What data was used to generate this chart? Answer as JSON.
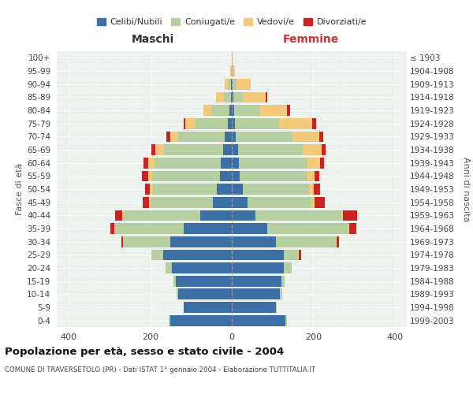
{
  "age_groups": [
    "0-4",
    "5-9",
    "10-14",
    "15-19",
    "20-24",
    "25-29",
    "30-34",
    "35-39",
    "40-44",
    "45-49",
    "50-54",
    "55-59",
    "60-64",
    "65-69",
    "70-74",
    "75-79",
    "80-84",
    "85-89",
    "90-94",
    "95-99",
    "100+"
  ],
  "birth_years": [
    "1999-2003",
    "1994-1998",
    "1989-1993",
    "1984-1988",
    "1979-1983",
    "1974-1978",
    "1969-1973",
    "1964-1968",
    "1959-1963",
    "1954-1958",
    "1949-1953",
    "1944-1948",
    "1939-1943",
    "1934-1938",
    "1929-1933",
    "1924-1928",
    "1919-1923",
    "1914-1918",
    "1909-1913",
    "1904-1908",
    "≤ 1903"
  ],
  "colors": {
    "celibi": "#3c6fa5",
    "coniugati": "#b5cfa0",
    "vedovi": "#f5c97a",
    "divorziati": "#cc2222"
  },
  "maschi": {
    "celibi": [
      152,
      118,
      132,
      138,
      148,
      168,
      152,
      118,
      78,
      46,
      36,
      30,
      28,
      22,
      17,
      9,
      5,
      2,
      1,
      0,
      0
    ],
    "coniugati": [
      2,
      1,
      3,
      5,
      15,
      30,
      115,
      168,
      188,
      152,
      158,
      165,
      162,
      145,
      115,
      80,
      45,
      18,
      8,
      2,
      0
    ],
    "vedovi": [
      0,
      0,
      0,
      0,
      0,
      0,
      0,
      2,
      3,
      5,
      8,
      10,
      15,
      20,
      20,
      25,
      20,
      18,
      8,
      2,
      0
    ],
    "divorziati": [
      0,
      0,
      0,
      0,
      0,
      0,
      5,
      10,
      18,
      15,
      12,
      15,
      12,
      10,
      8,
      5,
      0,
      0,
      0,
      0,
      0
    ]
  },
  "femmine": {
    "celibi": [
      132,
      108,
      118,
      122,
      128,
      128,
      108,
      88,
      58,
      38,
      28,
      20,
      18,
      15,
      10,
      7,
      5,
      3,
      1,
      0,
      0
    ],
    "coniugati": [
      3,
      2,
      5,
      8,
      20,
      35,
      148,
      198,
      212,
      158,
      162,
      165,
      168,
      160,
      140,
      110,
      65,
      25,
      10,
      2,
      0
    ],
    "vedovi": [
      0,
      0,
      0,
      0,
      0,
      2,
      2,
      2,
      3,
      8,
      12,
      18,
      30,
      45,
      65,
      80,
      65,
      55,
      35,
      5,
      2
    ],
    "divorziati": [
      0,
      0,
      0,
      0,
      0,
      5,
      5,
      18,
      35,
      25,
      15,
      12,
      10,
      10,
      10,
      10,
      8,
      5,
      0,
      1,
      0
    ]
  },
  "title": "Popolazione per età, sesso e stato civile - 2004",
  "subtitle": "COMUNE DI TRAVERSETOLO (PR) - Dati ISTAT 1° gennaio 2004 - Elaborazione TUTTITALIA.IT",
  "xlabel_left": "Maschi",
  "xlabel_right": "Femmine",
  "ylabel_left": "Fasce di età",
  "ylabel_right": "Anni di nascita",
  "xlim": 430,
  "legend_labels": [
    "Celibi/Nubili",
    "Coniugati/e",
    "Vedovi/e",
    "Divorziati/e"
  ],
  "bg_color": "#ffffff",
  "plot_bg": "#eef2ee"
}
